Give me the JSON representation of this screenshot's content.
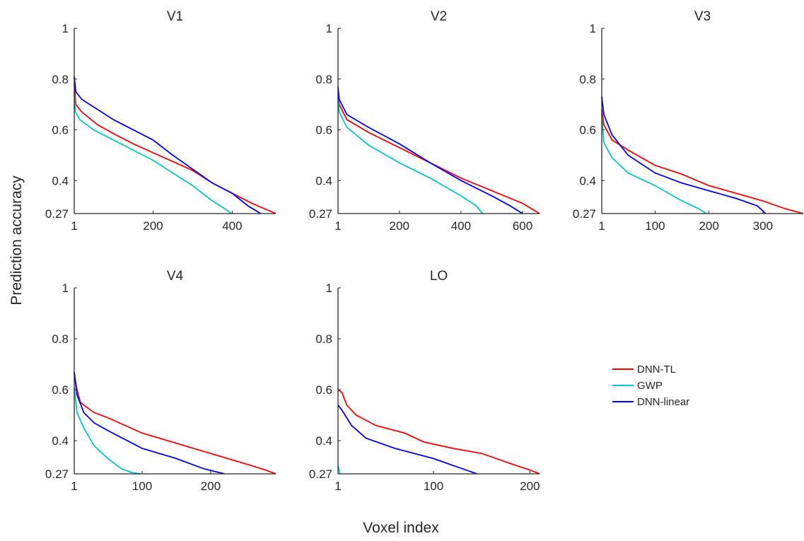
{
  "figure": {
    "ylabel": "Prediction  accuracy",
    "xlabel": "Voxel index"
  },
  "legend": {
    "placement": "right",
    "entries": [
      {
        "name": "DNN-TL",
        "color": "#ff0000"
      },
      {
        "name": "GWP",
        "color": "#00c8c8"
      },
      {
        "name": "DNN-linear",
        "color": "#0000ff"
      }
    ]
  },
  "chart_data": [
    {
      "type": "line",
      "title": "V1",
      "xlim": [
        1,
        510
      ],
      "ylim": [
        0.27,
        1
      ],
      "xticks": [
        1,
        200,
        400
      ],
      "yticks": [
        0.27,
        0.4,
        0.6,
        0.8,
        1
      ],
      "ytick_labels": [
        "0.27",
        "0.4",
        "0.6",
        "0.8",
        "1"
      ],
      "series": [
        {
          "name": "DNN-TL",
          "color": "#ff0000",
          "points": [
            [
              1,
              0.78
            ],
            [
              5,
              0.7
            ],
            [
              20,
              0.67
            ],
            [
              60,
              0.62
            ],
            [
              100,
              0.585
            ],
            [
              150,
              0.545
            ],
            [
              200,
              0.51
            ],
            [
              250,
              0.475
            ],
            [
              300,
              0.44
            ],
            [
              350,
              0.39
            ],
            [
              400,
              0.35
            ],
            [
              450,
              0.31
            ],
            [
              480,
              0.29
            ],
            [
              510,
              0.27
            ]
          ]
        },
        {
          "name": "GWP",
          "color": "#00c8c8",
          "points": [
            [
              1,
              0.74
            ],
            [
              4,
              0.67
            ],
            [
              15,
              0.64
            ],
            [
              50,
              0.6
            ],
            [
              100,
              0.56
            ],
            [
              150,
              0.52
            ],
            [
              200,
              0.48
            ],
            [
              250,
              0.43
            ],
            [
              300,
              0.38
            ],
            [
              350,
              0.32
            ],
            [
              380,
              0.29
            ],
            [
              398,
              0.27
            ]
          ]
        },
        {
          "name": "DNN-linear",
          "color": "#0000ff",
          "points": [
            [
              1,
              0.81
            ],
            [
              5,
              0.75
            ],
            [
              20,
              0.72
            ],
            [
              60,
              0.68
            ],
            [
              100,
              0.64
            ],
            [
              150,
              0.6
            ],
            [
              200,
              0.56
            ],
            [
              250,
              0.5
            ],
            [
              300,
              0.445
            ],
            [
              350,
              0.39
            ],
            [
              400,
              0.35
            ],
            [
              440,
              0.3
            ],
            [
              472,
              0.27
            ]
          ]
        }
      ]
    },
    {
      "type": "line",
      "title": "V2",
      "xlim": [
        1,
        655
      ],
      "ylim": [
        0.27,
        1
      ],
      "xticks": [
        1,
        200,
        400,
        600
      ],
      "yticks": [
        0.27,
        0.4,
        0.6,
        0.8,
        1
      ],
      "ytick_labels": [
        "0.27",
        "0.4",
        "0.6",
        "0.8",
        "1"
      ],
      "series": [
        {
          "name": "DNN-TL",
          "color": "#ff0000",
          "points": [
            [
              1,
              0.75
            ],
            [
              5,
              0.7
            ],
            [
              30,
              0.64
            ],
            [
              100,
              0.59
            ],
            [
              200,
              0.53
            ],
            [
              300,
              0.47
            ],
            [
              400,
              0.41
            ],
            [
              500,
              0.36
            ],
            [
              600,
              0.31
            ],
            [
              655,
              0.27
            ]
          ]
        },
        {
          "name": "GWP",
          "color": "#00c8c8",
          "points": [
            [
              1,
              0.73
            ],
            [
              5,
              0.67
            ],
            [
              30,
              0.61
            ],
            [
              100,
              0.54
            ],
            [
              200,
              0.47
            ],
            [
              300,
              0.41
            ],
            [
              400,
              0.34
            ],
            [
              450,
              0.3
            ],
            [
              470,
              0.27
            ]
          ]
        },
        {
          "name": "DNN-linear",
          "color": "#0000ff",
          "points": [
            [
              1,
              0.77
            ],
            [
              5,
              0.72
            ],
            [
              30,
              0.66
            ],
            [
              100,
              0.61
            ],
            [
              200,
              0.545
            ],
            [
              300,
              0.47
            ],
            [
              400,
              0.4
            ],
            [
              500,
              0.34
            ],
            [
              560,
              0.3
            ],
            [
              600,
              0.27
            ]
          ]
        }
      ]
    },
    {
      "type": "line",
      "title": "V3",
      "xlim": [
        1,
        375
      ],
      "ylim": [
        0.27,
        1
      ],
      "xticks": [
        1,
        100,
        200,
        300
      ],
      "yticks": [
        0.27,
        0.4,
        0.6,
        0.8,
        1
      ],
      "ytick_labels": [
        "0.27",
        "0.4",
        "0.6",
        "0.8",
        "1"
      ],
      "series": [
        {
          "name": "DNN-TL",
          "color": "#ff0000",
          "points": [
            [
              1,
              0.68
            ],
            [
              5,
              0.62
            ],
            [
              20,
              0.56
            ],
            [
              50,
              0.52
            ],
            [
              100,
              0.46
            ],
            [
              150,
              0.425
            ],
            [
              200,
              0.38
            ],
            [
              250,
              0.35
            ],
            [
              300,
              0.32
            ],
            [
              340,
              0.29
            ],
            [
              375,
              0.27
            ]
          ]
        },
        {
          "name": "GWP",
          "color": "#00c8c8",
          "points": [
            [
              1,
              0.66
            ],
            [
              5,
              0.55
            ],
            [
              20,
              0.49
            ],
            [
              50,
              0.43
            ],
            [
              100,
              0.38
            ],
            [
              150,
              0.32
            ],
            [
              180,
              0.29
            ],
            [
              195,
              0.27
            ]
          ]
        },
        {
          "name": "DNN-linear",
          "color": "#0000ff",
          "points": [
            [
              1,
              0.73
            ],
            [
              5,
              0.66
            ],
            [
              20,
              0.58
            ],
            [
              50,
              0.5
            ],
            [
              100,
              0.43
            ],
            [
              150,
              0.39
            ],
            [
              200,
              0.36
            ],
            [
              250,
              0.33
            ],
            [
              290,
              0.3
            ],
            [
              305,
              0.27
            ]
          ]
        }
      ]
    },
    {
      "type": "line",
      "title": "V4",
      "xlim": [
        1,
        295
      ],
      "ylim": [
        0.27,
        1
      ],
      "xticks": [
        1,
        100,
        200
      ],
      "yticks": [
        0.27,
        0.4,
        0.6,
        0.8,
        1
      ],
      "ytick_labels": [
        "0.27",
        "0.4",
        "0.6",
        "0.8",
        "1"
      ],
      "series": [
        {
          "name": "DNN-TL",
          "color": "#ff0000",
          "points": [
            [
              1,
              0.66
            ],
            [
              5,
              0.6
            ],
            [
              10,
              0.55
            ],
            [
              30,
              0.51
            ],
            [
              50,
              0.49
            ],
            [
              100,
              0.43
            ],
            [
              150,
              0.39
            ],
            [
              200,
              0.35
            ],
            [
              250,
              0.31
            ],
            [
              280,
              0.285
            ],
            [
              295,
              0.27
            ]
          ]
        },
        {
          "name": "GWP",
          "color": "#00c8c8",
          "points": [
            [
              1,
              0.61
            ],
            [
              5,
              0.51
            ],
            [
              15,
              0.45
            ],
            [
              30,
              0.38
            ],
            [
              50,
              0.33
            ],
            [
              70,
              0.29
            ],
            [
              85,
              0.275
            ],
            [
              97,
              0.27
            ]
          ]
        },
        {
          "name": "DNN-linear",
          "color": "#0000ff",
          "points": [
            [
              1,
              0.67
            ],
            [
              5,
              0.58
            ],
            [
              15,
              0.51
            ],
            [
              30,
              0.47
            ],
            [
              50,
              0.44
            ],
            [
              100,
              0.37
            ],
            [
              150,
              0.33
            ],
            [
              190,
              0.29
            ],
            [
              220,
              0.27
            ]
          ]
        }
      ]
    },
    {
      "type": "line",
      "title": "LO",
      "xlim": [
        1,
        210
      ],
      "ylim": [
        0.27,
        1
      ],
      "xticks": [
        1,
        100,
        200
      ],
      "yticks": [
        0.27,
        0.4,
        0.6,
        0.8,
        1
      ],
      "ytick_labels": [
        "0.27",
        "0.4",
        "0.6",
        "0.8",
        "1"
      ],
      "series": [
        {
          "name": "DNN-TL",
          "color": "#ff0000",
          "points": [
            [
              1,
              0.6
            ],
            [
              5,
              0.59
            ],
            [
              10,
              0.54
            ],
            [
              20,
              0.5
            ],
            [
              40,
              0.46
            ],
            [
              70,
              0.43
            ],
            [
              90,
              0.395
            ],
            [
              120,
              0.37
            ],
            [
              150,
              0.35
            ],
            [
              180,
              0.31
            ],
            [
              200,
              0.285
            ],
            [
              210,
              0.27
            ]
          ]
        },
        {
          "name": "GWP",
          "color": "#00c8c8",
          "points": [
            [
              1,
              0.3
            ],
            [
              2,
              0.29
            ],
            [
              3,
              0.27
            ]
          ]
        },
        {
          "name": "DNN-linear",
          "color": "#0000ff",
          "points": [
            [
              1,
              0.54
            ],
            [
              5,
              0.52
            ],
            [
              15,
              0.46
            ],
            [
              30,
              0.41
            ],
            [
              60,
              0.37
            ],
            [
              100,
              0.33
            ],
            [
              130,
              0.29
            ],
            [
              145,
              0.27
            ]
          ]
        }
      ]
    }
  ]
}
